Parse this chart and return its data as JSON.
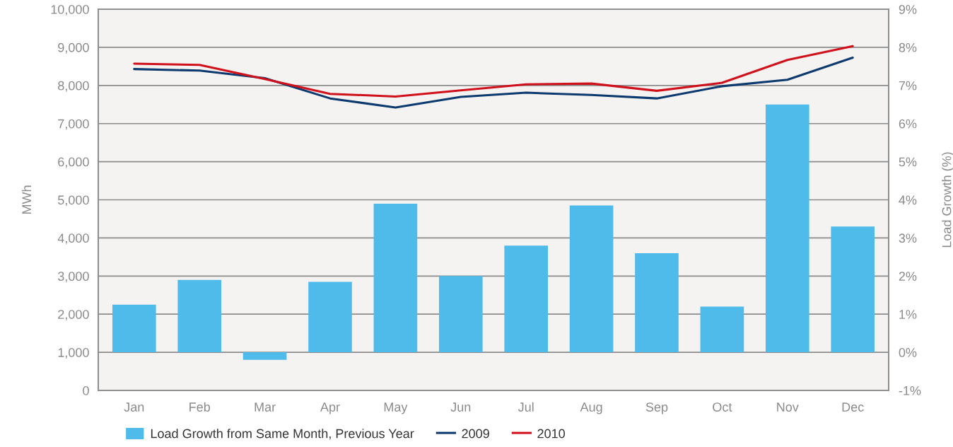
{
  "chart_data": {
    "type": "bar",
    "ylabel": "MWh",
    "y2label": "Load Growth (%)",
    "categories": [
      "Jan",
      "Feb",
      "Mar",
      "Apr",
      "May",
      "Jun",
      "Jul",
      "Aug",
      "Sep",
      "Oct",
      "Nov",
      "Dec"
    ],
    "series": [
      {
        "name": "Load Growth from Same Month, Previous Year",
        "axis": "y2",
        "color": "#4fbbea",
        "values": [
          1.25,
          1.9,
          -0.2,
          1.85,
          3.9,
          2.0,
          2.8,
          3.85,
          2.6,
          1.2,
          6.5,
          3.3
        ]
      },
      {
        "name": "2009",
        "type": "line",
        "axis": "y",
        "color": "#0d3a6e",
        "values": [
          8430,
          8390,
          8190,
          7660,
          7420,
          7700,
          7810,
          7750,
          7660,
          7980,
          8150,
          8730
        ]
      },
      {
        "name": "2010",
        "type": "line",
        "axis": "y",
        "color": "#d0111b",
        "values": [
          8570,
          8540,
          8170,
          7780,
          7710,
          7870,
          8030,
          8050,
          7860,
          8070,
          8670,
          9030
        ]
      }
    ],
    "ylim": [
      0,
      10000
    ],
    "yticks": [
      0,
      {
        "value": 1000,
        "label": "1,000"
      },
      {
        "value": 2000,
        "label": "2,000"
      },
      {
        "value": 3000,
        "label": "3,000"
      },
      {
        "value": 4000,
        "label": "4,000"
      },
      {
        "value": 5000,
        "label": "5,000"
      },
      {
        "value": 6000,
        "label": "6,000"
      },
      {
        "value": 7000,
        "label": "7,000"
      },
      {
        "value": 8000,
        "label": "8,000"
      },
      {
        "value": 9000,
        "label": "9,000"
      },
      {
        "value": 10000,
        "label": "10,000"
      }
    ],
    "y2lim": [
      -1,
      9
    ],
    "y2ticks": [
      {
        "value": -1,
        "label": "-1%"
      },
      {
        "value": 0,
        "label": "0%"
      },
      {
        "value": 1,
        "label": "1%"
      },
      {
        "value": 2,
        "label": "2%"
      },
      {
        "value": 3,
        "label": "3%"
      },
      {
        "value": 4,
        "label": "4%"
      },
      {
        "value": 5,
        "label": "5%"
      },
      {
        "value": 6,
        "label": "6%"
      },
      {
        "value": 7,
        "label": "7%"
      },
      {
        "value": 8,
        "label": "8%"
      },
      {
        "value": 9,
        "label": "9%"
      }
    ],
    "grid": "y",
    "legend": "bottom"
  }
}
